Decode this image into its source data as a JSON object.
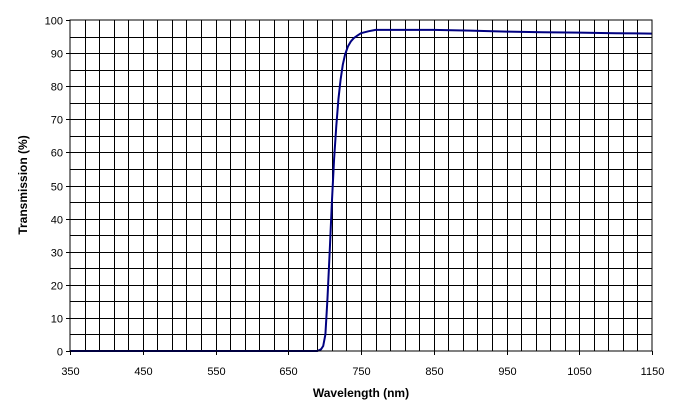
{
  "chart_data": {
    "type": "line",
    "title": "",
    "xlabel": "Wavelength (nm)",
    "ylabel": "Transmission (%)",
    "xlim": [
      350,
      1150
    ],
    "ylim": [
      0,
      100
    ],
    "x_ticks": [
      "350",
      "450",
      "550",
      "650",
      "750",
      "850",
      "950",
      "1050",
      "1150"
    ],
    "y_ticks": [
      "0",
      "10",
      "20",
      "30",
      "40",
      "50",
      "60",
      "70",
      "80",
      "90",
      "100"
    ],
    "x_minor_step": 20,
    "y_minor_step": 5,
    "grid": true,
    "legend": "none",
    "series": [
      {
        "color": "#000080",
        "x": [
          350,
          600,
          690,
          695,
          698,
          701,
          704,
          707,
          710,
          713,
          716,
          719,
          722,
          725,
          728,
          732,
          736,
          740,
          745,
          750,
          760,
          770,
          780,
          790,
          800,
          850,
          900,
          950,
          1000,
          1050,
          1100,
          1150
        ],
        "y": [
          0,
          0,
          0,
          0.5,
          1.5,
          5,
          16,
          30,
          45,
          58,
          68,
          76,
          82,
          86.5,
          89.5,
          92,
          93.5,
          94.5,
          95.3,
          96,
          96.6,
          97,
          97,
          97,
          97,
          97,
          96.8,
          96.5,
          96.3,
          96.2,
          96,
          95.9
        ]
      }
    ]
  }
}
